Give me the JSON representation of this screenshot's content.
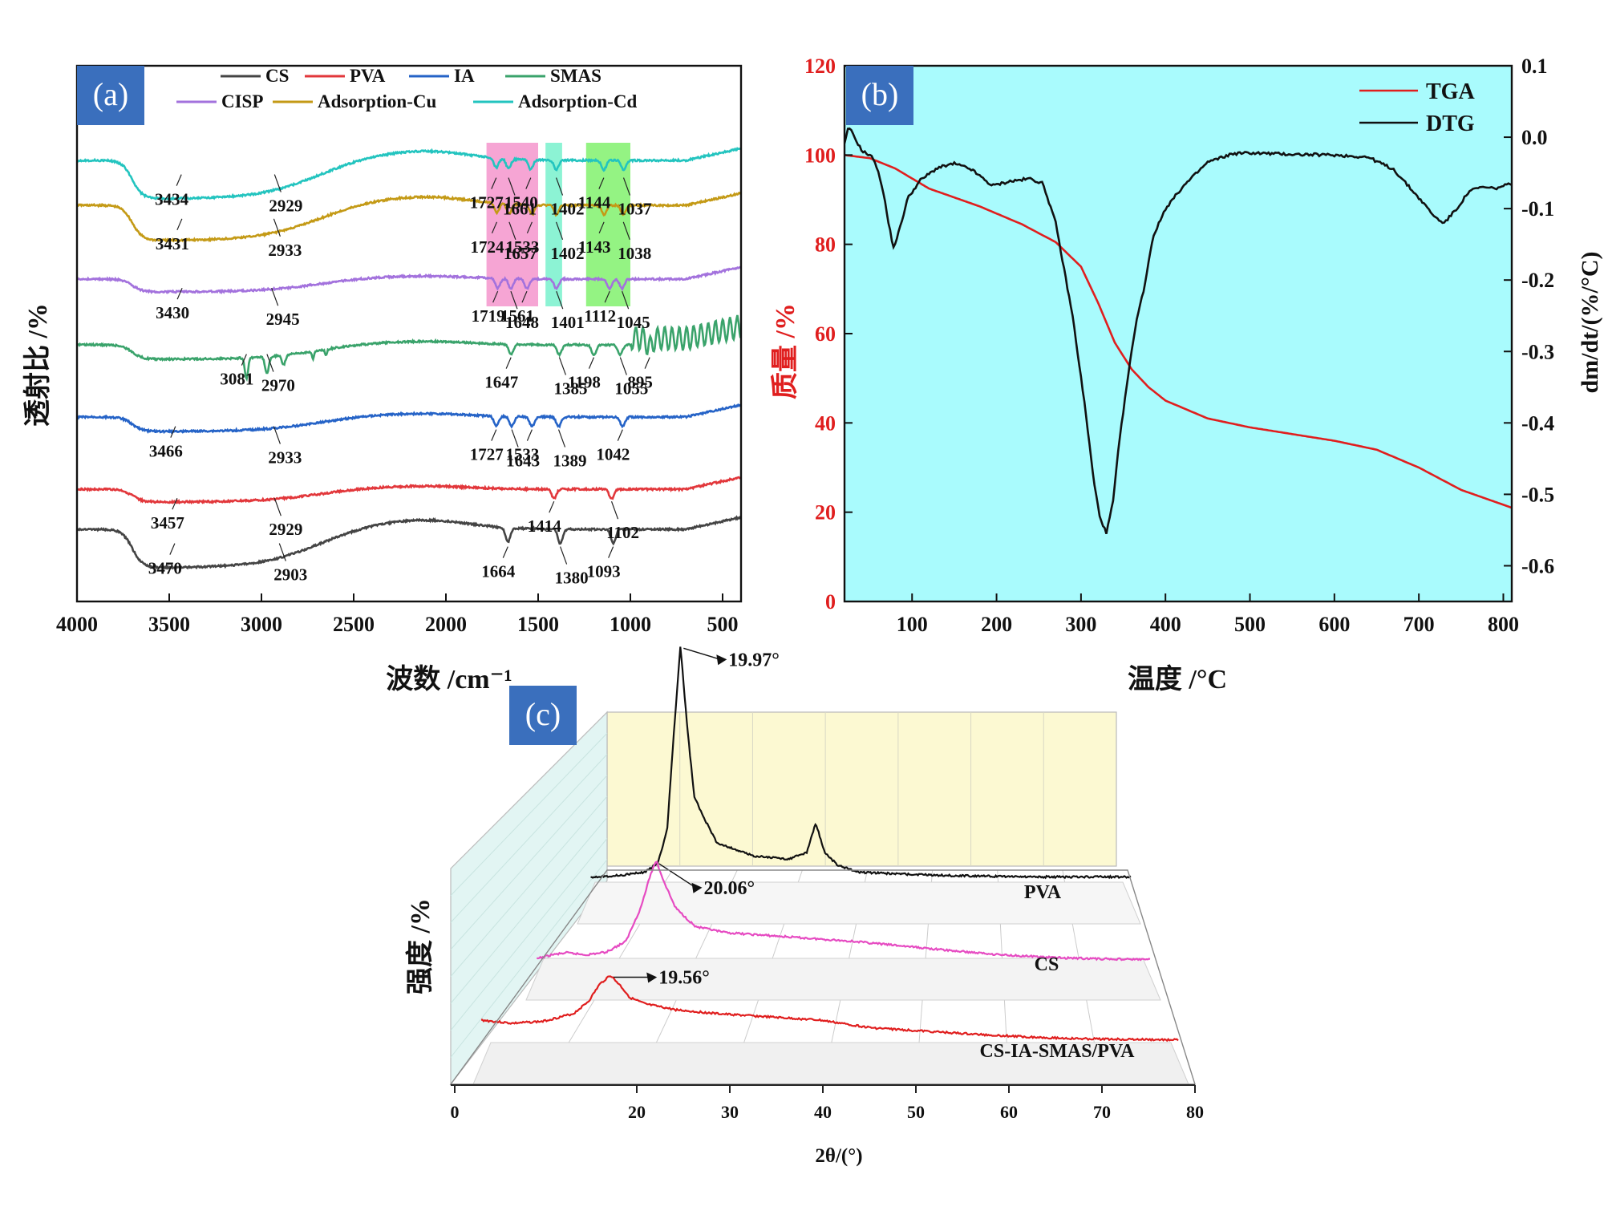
{
  "panels": {
    "a": {
      "label": "(a)"
    },
    "b": {
      "label": "(b)"
    },
    "c": {
      "label": "(c)"
    }
  },
  "colors": {
    "panel_label_bg": "#3a6fbd",
    "b_background": "#a9fbfd",
    "c_back_wall": "#fcf9d2",
    "c_side_wall": "#e2f5f3",
    "c_floor": "#ececec"
  },
  "chart_data": [
    {
      "id": "a",
      "type": "line",
      "title": "",
      "xlabel": "波数 /cm⁻¹",
      "ylabel": "透射比 /%",
      "xlim": [
        4000,
        400
      ],
      "xticks": [
        "4000",
        "3500",
        "3000",
        "2500",
        "2000",
        "1500",
        "1000",
        "500"
      ],
      "legend": {
        "position": "top",
        "entries": [
          {
            "name": "CS",
            "color": "#444444"
          },
          {
            "name": "PVA",
            "color": "#e2373b"
          },
          {
            "name": "IA",
            "color": "#2563c7"
          },
          {
            "name": "SMAS",
            "color": "#3aa36b"
          },
          {
            "name": "CISP",
            "color": "#a372dd"
          },
          {
            "name": "Adsorption-Cu",
            "color": "#c49a16"
          },
          {
            "name": "Adsorption-Cd",
            "color": "#23c4bf"
          }
        ]
      },
      "highlight_bands": [
        {
          "range": [
            1780,
            1500
          ],
          "color": "#f5a0d2"
        },
        {
          "range": [
            1460,
            1370
          ],
          "color": "#86f2d2"
        },
        {
          "range": [
            1240,
            1000
          ],
          "color": "#8ef27c"
        }
      ],
      "series": [
        {
          "name": "Adsorption-Cd",
          "color": "#23c4bf",
          "peaks": [
            {
              "wn": 3434,
              "label": "3434"
            },
            {
              "wn": 2929,
              "label": "2929"
            },
            {
              "wn": 1727,
              "label": "1727"
            },
            {
              "wn": 1661,
              "label": "1661"
            },
            {
              "wn": 1540,
              "label": "1540"
            },
            {
              "wn": 1402,
              "label": "1402"
            },
            {
              "wn": 1144,
              "label": "1144"
            },
            {
              "wn": 1037,
              "label": "1037"
            }
          ]
        },
        {
          "name": "Adsorption-Cu",
          "color": "#c49a16",
          "peaks": [
            {
              "wn": 3431,
              "label": "3431"
            },
            {
              "wn": 2933,
              "label": "2933"
            },
            {
              "wn": 1724,
              "label": "1724"
            },
            {
              "wn": 1657,
              "label": "1657"
            },
            {
              "wn": 1533,
              "label": "1533"
            },
            {
              "wn": 1402,
              "label": "1402"
            },
            {
              "wn": 1143,
              "label": "1143"
            },
            {
              "wn": 1038,
              "label": "1038"
            }
          ]
        },
        {
          "name": "CISP",
          "color": "#a372dd",
          "peaks": [
            {
              "wn": 3430,
              "label": "3430"
            },
            {
              "wn": 2945,
              "label": "2945"
            },
            {
              "wn": 1719,
              "label": "1719"
            },
            {
              "wn": 1648,
              "label": "1648"
            },
            {
              "wn": 1561,
              "label": "1561"
            },
            {
              "wn": 1401,
              "label": "1401"
            },
            {
              "wn": 1112,
              "label": "1112"
            },
            {
              "wn": 1045,
              "label": "1045"
            }
          ]
        },
        {
          "name": "SMAS",
          "color": "#3aa36b",
          "peaks": [
            {
              "wn": 3081,
              "label": "3081"
            },
            {
              "wn": 2970,
              "label": "2970"
            },
            {
              "wn": 1647,
              "label": "1647"
            },
            {
              "wn": 1385,
              "label": "1385"
            },
            {
              "wn": 1198,
              "label": "1198"
            },
            {
              "wn": 1055,
              "label": "1055"
            },
            {
              "wn": 895,
              "label": "895"
            }
          ]
        },
        {
          "name": "IA",
          "color": "#2563c7",
          "peaks": [
            {
              "wn": 3466,
              "label": "3466"
            },
            {
              "wn": 2933,
              "label": "2933"
            },
            {
              "wn": 1727,
              "label": "1727"
            },
            {
              "wn": 1643,
              "label": "1643"
            },
            {
              "wn": 1533,
              "label": "1533"
            },
            {
              "wn": 1389,
              "label": "1389"
            },
            {
              "wn": 1042,
              "label": "1042"
            }
          ]
        },
        {
          "name": "PVA",
          "color": "#e2373b",
          "peaks": [
            {
              "wn": 3457,
              "label": "3457"
            },
            {
              "wn": 2929,
              "label": "2929"
            },
            {
              "wn": 1414,
              "label": "1414"
            },
            {
              "wn": 1102,
              "label": "1102"
            }
          ]
        },
        {
          "name": "CS",
          "color": "#444444",
          "peaks": [
            {
              "wn": 3470,
              "label": "3470"
            },
            {
              "wn": 2903,
              "label": "2903"
            },
            {
              "wn": 1664,
              "label": "1664"
            },
            {
              "wn": 1380,
              "label": "1380"
            },
            {
              "wn": 1093,
              "label": "1093"
            }
          ]
        }
      ]
    },
    {
      "id": "b",
      "type": "line",
      "title": "",
      "xlabel": "温度 /°C",
      "ylabel_left": "质量 /%",
      "ylabel_right": "dm/dt/(%/°C)",
      "xlim": [
        20,
        810
      ],
      "ylim_left": [
        0,
        120
      ],
      "ylim_right": [
        -0.65,
        0.1
      ],
      "xticks": [
        "100",
        "200",
        "300",
        "400",
        "500",
        "600",
        "700",
        "800"
      ],
      "yticks_left": [
        "0",
        "20",
        "40",
        "60",
        "80",
        "100",
        "120"
      ],
      "yticks_right": [
        "-0.6",
        "-0.5",
        "-0.4",
        "-0.3",
        "-0.2",
        "-0.1",
        "0.0",
        "0.1"
      ],
      "legend": {
        "position": "top-right",
        "entries": [
          {
            "name": "TGA",
            "color": "#e01e1e"
          },
          {
            "name": "DTG",
            "color": "#111111"
          }
        ]
      },
      "series": [
        {
          "name": "TGA",
          "axis": "left",
          "color": "#e01e1e",
          "x": [
            20,
            50,
            80,
            120,
            180,
            230,
            270,
            300,
            320,
            340,
            360,
            380,
            400,
            450,
            500,
            550,
            600,
            650,
            700,
            750,
            810
          ],
          "y": [
            100,
            99.3,
            97,
            92.5,
            88.5,
            84.5,
            80.5,
            75,
            67,
            58,
            52,
            48,
            45,
            41,
            39,
            37.5,
            36,
            34,
            30,
            25,
            21
          ]
        },
        {
          "name": "DTG",
          "axis": "right",
          "color": "#111111",
          "x": [
            20,
            25,
            40,
            55,
            65,
            72,
            78,
            85,
            95,
            110,
            130,
            150,
            170,
            195,
            215,
            240,
            255,
            270,
            290,
            305,
            315,
            322,
            330,
            338,
            345,
            355,
            365,
            375,
            385,
            400,
            420,
            450,
            480,
            500,
            550,
            600,
            640,
            670,
            700,
            720,
            730,
            745,
            760,
            775,
            790,
            810
          ],
          "y": [
            -0.01,
            0.015,
            -0.018,
            -0.03,
            -0.07,
            -0.12,
            -0.155,
            -0.13,
            -0.085,
            -0.06,
            -0.043,
            -0.037,
            -0.045,
            -0.068,
            -0.062,
            -0.058,
            -0.065,
            -0.12,
            -0.25,
            -0.38,
            -0.48,
            -0.53,
            -0.555,
            -0.51,
            -0.43,
            -0.34,
            -0.26,
            -0.21,
            -0.14,
            -0.1,
            -0.07,
            -0.035,
            -0.023,
            -0.022,
            -0.024,
            -0.025,
            -0.028,
            -0.045,
            -0.085,
            -0.113,
            -0.12,
            -0.1,
            -0.075,
            -0.07,
            -0.072,
            -0.065
          ]
        }
      ]
    },
    {
      "id": "c",
      "type": "line",
      "title": "",
      "xlabel": "2θ/(°)",
      "ylabel": "强度 /%",
      "xlim": [
        0,
        80
      ],
      "xticks": [
        "0",
        "20",
        "30",
        "40",
        "50",
        "60",
        "70",
        "80"
      ],
      "series": [
        {
          "name": "PVA",
          "color": "#111111",
          "peak_label": "19.97°",
          "x": [
            10,
            13,
            16,
            17.5,
            18.5,
            19.2,
            19.97,
            20.7,
            21.5,
            22.5,
            24,
            28,
            32,
            34,
            35,
            36,
            37.5,
            40,
            45,
            50,
            55,
            60,
            65,
            70
          ],
          "y": [
            0.8,
            1.0,
            1.5,
            3,
            8,
            22,
            36,
            24,
            13,
            10,
            6,
            4,
            3.5,
            4.5,
            9,
            4.5,
            2.5,
            1.5,
            1.2,
            1.0,
            0.9,
            0.8,
            0.8,
            0.8
          ]
        },
        {
          "name": "CS",
          "color": "#e64bc2",
          "peak_label": "20.06°",
          "x": [
            8,
            9.5,
            11,
            13,
            15,
            17,
            18.5,
            19.5,
            20.06,
            20.8,
            22,
            24,
            27,
            30,
            35,
            40,
            45,
            50,
            55,
            60,
            65,
            70
          ],
          "y": [
            0.4,
            1.0,
            1.3,
            1.0,
            1.4,
            3,
            8,
            13,
            15,
            12,
            8,
            5.2,
            4.3,
            4.0,
            3.5,
            3.0,
            2.3,
            1.6,
            1.0,
            0.6,
            0.4,
            0.3
          ]
        },
        {
          "name": "CS-IA-SMAS/PVA",
          "color": "#e01e1e",
          "peak_label": "19.56°",
          "x": [
            7,
            10,
            13,
            16,
            17.5,
            18.5,
            19.56,
            20.5,
            21.5,
            23,
            26,
            30,
            35,
            40,
            45,
            50,
            55,
            60,
            65,
            70,
            75
          ],
          "y": [
            4.0,
            3.5,
            3.8,
            5,
            7,
            9.5,
            11,
            9.5,
            7.5,
            6.5,
            5.6,
            5.0,
            4.5,
            4.0,
            2.8,
            2.3,
            1.8,
            1.4,
            1.1,
            1.0,
            0.9
          ]
        }
      ]
    }
  ]
}
